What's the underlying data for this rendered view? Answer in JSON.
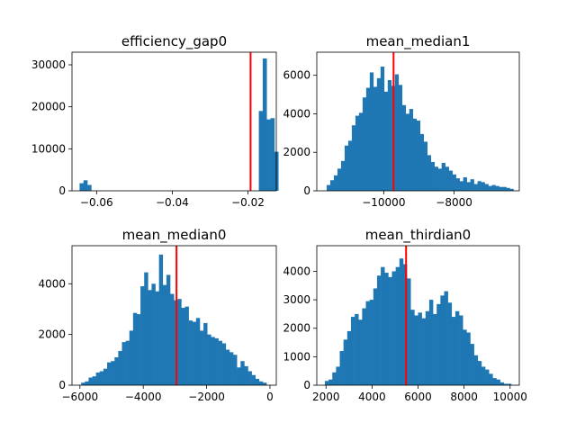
{
  "chart_data": [
    {
      "type": "bar",
      "title": "efficiency_gap0",
      "xlabel": "",
      "ylabel": "",
      "xlim": [
        -0.0665,
        -0.0125
      ],
      "ylim": [
        0,
        33000
      ],
      "bin_start": -0.0645,
      "bin_width": 0.00103,
      "values": [
        1800,
        2500,
        1400,
        0,
        0,
        0,
        0,
        0,
        0,
        0,
        0,
        0,
        0,
        0,
        0,
        0,
        0,
        0,
        0,
        0,
        0,
        0,
        0,
        0,
        0,
        0,
        0,
        0,
        0,
        0,
        0,
        0,
        0,
        0,
        0,
        0,
        0,
        0,
        0,
        0,
        0,
        0,
        0,
        0,
        0,
        0,
        19000,
        31500,
        17000,
        17300,
        9300
      ],
      "vline": -0.0193,
      "xticks": [
        -0.06,
        -0.04,
        -0.02
      ],
      "xtick_labels": [
        "−0.06",
        "−0.04",
        "−0.02"
      ],
      "yticks": [
        0,
        10000,
        20000,
        30000
      ],
      "ytick_labels": [
        "0",
        "10000",
        "20000",
        "30000"
      ]
    },
    {
      "type": "bar",
      "title": "mean_median1",
      "xlabel": "",
      "ylabel": "",
      "xlim": [
        -11900,
        -6150
      ],
      "ylim": [
        0,
        7200
      ],
      "bin_start": -11620,
      "bin_width": 102,
      "values": [
        300,
        550,
        800,
        1150,
        1550,
        2350,
        2600,
        3400,
        3900,
        4050,
        4850,
        5350,
        6150,
        5400,
        5850,
        6450,
        5150,
        5750,
        5450,
        6050,
        5500,
        4450,
        4000,
        4250,
        3750,
        3650,
        2950,
        2550,
        1850,
        1500,
        1250,
        1150,
        1450,
        1250,
        1050,
        850,
        650,
        500,
        700,
        450,
        600,
        350,
        500,
        450,
        350,
        250,
        300,
        250,
        200,
        200,
        150,
        100
      ],
      "vline": -9720,
      "xticks": [
        -10000,
        -8000
      ],
      "xtick_labels": [
        "−10000",
        "−8000"
      ],
      "yticks": [
        0,
        2000,
        4000,
        6000
      ],
      "ytick_labels": [
        "0",
        "2000",
        "4000",
        "6000"
      ]
    },
    {
      "type": "bar",
      "title": "mean_median0",
      "xlabel": "",
      "ylabel": "",
      "xlim": [
        -6250,
        200
      ],
      "ylim": [
        0,
        5500
      ],
      "bin_start": -5960,
      "bin_width": 117,
      "values": [
        100,
        150,
        300,
        350,
        500,
        550,
        650,
        900,
        950,
        1100,
        1350,
        1700,
        1750,
        2150,
        2850,
        2800,
        3900,
        4450,
        3750,
        4000,
        3700,
        5150,
        3950,
        4350,
        3600,
        3350,
        3400,
        3050,
        3100,
        2550,
        2500,
        2650,
        2150,
        2450,
        2000,
        1900,
        1850,
        1750,
        1650,
        1400,
        1300,
        1200,
        700,
        950,
        750,
        550,
        400,
        250,
        150,
        100
      ],
      "vline": -2950,
      "xticks": [
        -6000,
        -4000,
        -2000,
        0
      ],
      "xtick_labels": [
        "−6000",
        "−4000",
        "−2000",
        "0"
      ],
      "yticks": [
        0,
        2000,
        4000
      ],
      "ytick_labels": [
        "0",
        "2000",
        "4000"
      ]
    },
    {
      "type": "bar",
      "title": "mean_thirdian0",
      "xlabel": "",
      "ylabel": "",
      "xlim": [
        1600,
        10400
      ],
      "ylim": [
        0,
        4900
      ],
      "bin_start": 1950,
      "bin_width": 162,
      "values": [
        150,
        200,
        450,
        650,
        1200,
        1600,
        1900,
        2400,
        2500,
        2300,
        2700,
        2950,
        3000,
        3400,
        3850,
        4150,
        3950,
        3800,
        4000,
        4150,
        4450,
        4250,
        3750,
        2650,
        2450,
        2550,
        2350,
        2600,
        3000,
        2500,
        2850,
        3150,
        3300,
        2900,
        2400,
        2600,
        2450,
        1950,
        1850,
        1450,
        1050,
        850,
        650,
        550,
        400,
        250,
        200,
        100,
        50,
        50
      ],
      "vline": 5480,
      "xticks": [
        2000,
        4000,
        6000,
        8000,
        10000
      ],
      "xtick_labels": [
        "2000",
        "4000",
        "6000",
        "8000",
        "10000"
      ],
      "yticks": [
        0,
        1000,
        2000,
        3000,
        4000
      ],
      "ytick_labels": [
        "0",
        "1000",
        "2000",
        "3000",
        "4000"
      ]
    }
  ],
  "colors": {
    "bars": "#1f77b4",
    "vline": "#ff0000",
    "axes": "#000000"
  }
}
